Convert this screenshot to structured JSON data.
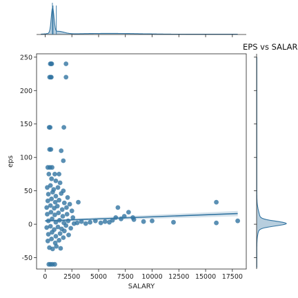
{
  "chart_data": {
    "type": "scatter",
    "title": "EPS vs SALAR",
    "xlabel": "SALARY",
    "ylabel": "eps",
    "xlim": [
      -800,
      18800
    ],
    "ylim": [
      -67,
      255
    ],
    "xticks": [
      0,
      2500,
      5000,
      7500,
      10000,
      12500,
      15000,
      17500
    ],
    "yticks": [
      -50,
      0,
      50,
      100,
      150,
      200,
      250
    ],
    "grid": false,
    "color": "#3274a1",
    "regression": {
      "x": [
        0,
        18000
      ],
      "y": [
        5,
        16
      ]
    },
    "marginal_x": "kde-histogram",
    "marginal_y": "kde-histogram",
    "points": [
      [
        480,
        240
      ],
      [
        560,
        240
      ],
      [
        620,
        240
      ],
      [
        1950,
        240
      ],
      [
        420,
        220
      ],
      [
        520,
        220
      ],
      [
        580,
        220
      ],
      [
        1950,
        220
      ],
      [
        380,
        145
      ],
      [
        470,
        145
      ],
      [
        1750,
        145
      ],
      [
        420,
        112
      ],
      [
        540,
        112
      ],
      [
        1500,
        110
      ],
      [
        250,
        85
      ],
      [
        450,
        85
      ],
      [
        650,
        85
      ],
      [
        1700,
        95
      ],
      [
        350,
        75
      ],
      [
        900,
        75
      ],
      [
        1300,
        75
      ],
      [
        600,
        68
      ],
      [
        1000,
        65
      ],
      [
        1400,
        62
      ],
      [
        200,
        55
      ],
      [
        500,
        58
      ],
      [
        800,
        52
      ],
      [
        1200,
        55
      ],
      [
        1700,
        50
      ],
      [
        300,
        45
      ],
      [
        700,
        48
      ],
      [
        1000,
        42
      ],
      [
        1500,
        46
      ],
      [
        2100,
        40
      ],
      [
        250,
        35
      ],
      [
        600,
        38
      ],
      [
        950,
        33
      ],
      [
        1300,
        36
      ],
      [
        1800,
        32
      ],
      [
        2300,
        30
      ],
      [
        3100,
        33
      ],
      [
        150,
        25
      ],
      [
        500,
        28
      ],
      [
        850,
        24
      ],
      [
        1150,
        27
      ],
      [
        1600,
        22
      ],
      [
        2000,
        25
      ],
      [
        2500,
        20
      ],
      [
        200,
        15
      ],
      [
        550,
        18
      ],
      [
        900,
        14
      ],
      [
        1250,
        17
      ],
      [
        1650,
        12
      ],
      [
        2050,
        15
      ],
      [
        2600,
        10
      ],
      [
        300,
        5
      ],
      [
        650,
        8
      ],
      [
        1000,
        3
      ],
      [
        1350,
        6
      ],
      [
        1750,
        2
      ],
      [
        2150,
        5
      ],
      [
        2700,
        1
      ],
      [
        150,
        -5
      ],
      [
        500,
        -3
      ],
      [
        850,
        -8
      ],
      [
        1200,
        -4
      ],
      [
        1550,
        -7
      ],
      [
        1950,
        -2
      ],
      [
        2400,
        -6
      ],
      [
        300,
        -15
      ],
      [
        650,
        -12
      ],
      [
        1000,
        -18
      ],
      [
        1400,
        -14
      ],
      [
        1800,
        -10
      ],
      [
        2200,
        -16
      ],
      [
        250,
        -25
      ],
      [
        600,
        -22
      ],
      [
        950,
        -28
      ],
      [
        1300,
        -24
      ],
      [
        1700,
        -20
      ],
      [
        400,
        -35
      ],
      [
        700,
        -37
      ],
      [
        1050,
        -33
      ],
      [
        1450,
        -36
      ],
      [
        350,
        -60
      ],
      [
        500,
        -60
      ],
      [
        680,
        -60
      ],
      [
        900,
        -60
      ],
      [
        3000,
        2
      ],
      [
        3400,
        4
      ],
      [
        3800,
        1
      ],
      [
        4200,
        3
      ],
      [
        4700,
        5
      ],
      [
        5200,
        2
      ],
      [
        5600,
        4
      ],
      [
        6000,
        3
      ],
      [
        6300,
        6
      ],
      [
        6600,
        10
      ],
      [
        6800,
        25
      ],
      [
        7100,
        8
      ],
      [
        7400,
        12
      ],
      [
        7800,
        18
      ],
      [
        8200,
        10
      ],
      [
        8300,
        7
      ],
      [
        9200,
        4
      ],
      [
        10000,
        5
      ],
      [
        12000,
        3
      ],
      [
        16000,
        33
      ],
      [
        16000,
        2
      ],
      [
        18000,
        5
      ]
    ]
  }
}
